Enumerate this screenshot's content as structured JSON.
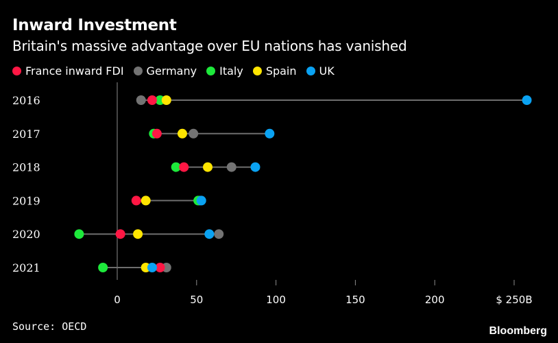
{
  "header": {
    "title": "Inward Investment",
    "subtitle": "Britain's massive advantage over EU nations has vanished"
  },
  "legend": [
    {
      "label": "France inward FDI",
      "color": "#ff1744"
    },
    {
      "label": "Germany",
      "color": "#737373"
    },
    {
      "label": "Italy",
      "color": "#1de93b"
    },
    {
      "label": "Spain",
      "color": "#ffe500"
    },
    {
      "label": "UK",
      "color": "#0aa2f2"
    }
  ],
  "footer": {
    "source": "Source: OECD",
    "brand": "Bloomberg"
  },
  "chart_data": {
    "type": "dot-range",
    "title": "Inward Investment",
    "subtitle": "Britain's massive advantage over EU nations has vanished",
    "categories": [
      "2016",
      "2017",
      "2018",
      "2019",
      "2020",
      "2021"
    ],
    "x_ticks": [
      {
        "value": 0,
        "label": "0"
      },
      {
        "value": 50,
        "label": "50"
      },
      {
        "value": 100,
        "label": "100"
      },
      {
        "value": 150,
        "label": "150"
      },
      {
        "value": 200,
        "label": "200"
      },
      {
        "value": 250,
        "label": "$ 250B"
      }
    ],
    "xlim": [
      -28,
      262
    ],
    "series": [
      {
        "name": "France inward FDI",
        "color": "#ff1744",
        "values": [
          22,
          25,
          42,
          12,
          2,
          27
        ]
      },
      {
        "name": "Germany",
        "color": "#737373",
        "values": [
          15,
          48,
          72,
          52,
          64,
          31
        ]
      },
      {
        "name": "Italy",
        "color": "#1de93b",
        "values": [
          27,
          23,
          37,
          51,
          -24,
          -9
        ]
      },
      {
        "name": "Spain",
        "color": "#ffe500",
        "values": [
          31,
          41,
          57,
          18,
          13,
          18
        ]
      },
      {
        "name": "UK",
        "color": "#0aa2f2",
        "values": [
          258,
          96,
          87,
          53,
          58,
          22
        ]
      }
    ],
    "source": "Source: OECD"
  }
}
